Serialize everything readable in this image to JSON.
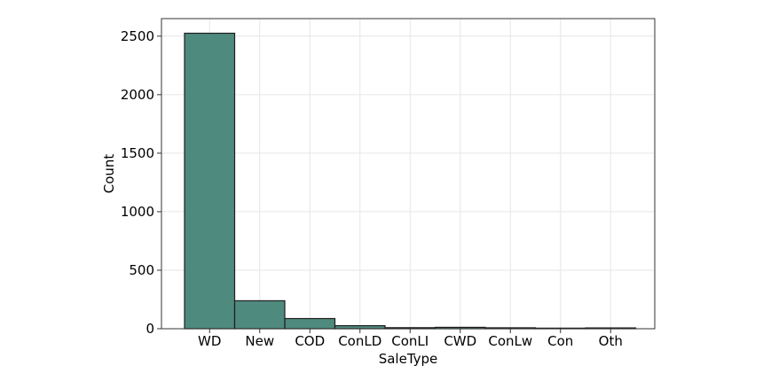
{
  "chart_data": {
    "type": "bar",
    "title": "",
    "xlabel": "SaleType",
    "ylabel": "Count",
    "categories": [
      "WD",
      "New",
      "COD",
      "ConLD",
      "ConLI",
      "CWD",
      "ConLw",
      "Con",
      "Oth"
    ],
    "values": [
      2525,
      239,
      87,
      26,
      9,
      12,
      8,
      5,
      7
    ],
    "ylim": [
      0,
      2650
    ],
    "yticks": [
      0,
      500,
      1000,
      1500,
      2000,
      2500
    ],
    "grid": true,
    "bar_color": "#4f8a7e"
  }
}
